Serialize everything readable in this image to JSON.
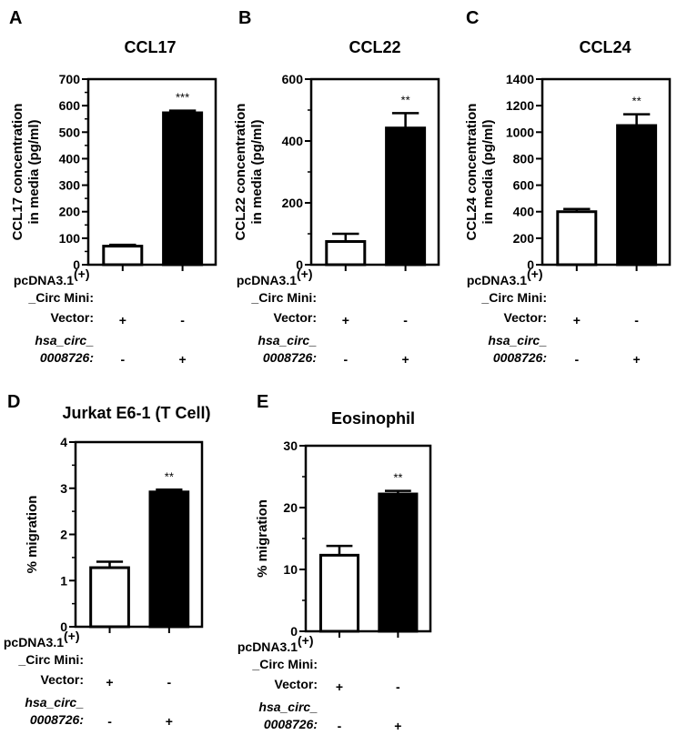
{
  "chart_data": [
    {
      "type": "bar",
      "panel": "A",
      "title": "CCL17",
      "ylabel_lines": [
        "CCL17 concentration",
        "in media (pg/ml)"
      ],
      "ylim": [
        0,
        700
      ],
      "yticks": [
        0,
        100,
        200,
        300,
        400,
        500,
        600,
        700
      ],
      "minor_step": 50,
      "categories": [
        "Vector",
        "hsa_circ_0008726"
      ],
      "values": [
        70,
        573
      ],
      "errors": [
        5,
        8
      ],
      "colors": [
        "#ffffff",
        "#000000"
      ],
      "significance": [
        "",
        "***"
      ],
      "rows": {
        "header": [
          "pcDNA3.1",
          "(+)",
          "_Circ Mini:"
        ],
        "vector_label": "Vector:",
        "circ_label": [
          "hsa_circ_",
          "0008726:"
        ],
        "vector_marks": [
          "+",
          "-"
        ],
        "circ_marks": [
          "-",
          "+"
        ]
      }
    },
    {
      "type": "bar",
      "panel": "B",
      "title": "CCL22",
      "ylabel_lines": [
        "CCL22 concentration",
        "in media (pg/ml)"
      ],
      "ylim": [
        0,
        600
      ],
      "yticks": [
        0,
        200,
        400,
        600
      ],
      "minor_step": 100,
      "categories": [
        "Vector",
        "hsa_circ_0008726"
      ],
      "values": [
        75,
        442
      ],
      "errors": [
        25,
        48
      ],
      "colors": [
        "#ffffff",
        "#000000"
      ],
      "significance": [
        "",
        "**"
      ],
      "rows": {
        "header": [
          "pcDNA3.1",
          "(+)",
          "_Circ Mini:"
        ],
        "vector_label": "Vector:",
        "circ_label": [
          "hsa_circ_",
          "0008726:"
        ],
        "vector_marks": [
          "+",
          "-"
        ],
        "circ_marks": [
          "-",
          "+"
        ]
      }
    },
    {
      "type": "bar",
      "panel": "C",
      "title": "CCL24",
      "ylabel_lines": [
        "CCL24 concentration",
        "in media (pg/ml)"
      ],
      "ylim": [
        0,
        1400
      ],
      "yticks": [
        0,
        200,
        400,
        600,
        800,
        1000,
        1200,
        1400
      ],
      "minor_step": 200,
      "categories": [
        "Vector",
        "hsa_circ_0008726"
      ],
      "values": [
        400,
        1050
      ],
      "errors": [
        20,
        85
      ],
      "colors": [
        "#ffffff",
        "#000000"
      ],
      "significance": [
        "",
        "**"
      ],
      "rows": {
        "header": [
          "pcDNA3.1",
          "(+)",
          "_Circ Mini:"
        ],
        "vector_label": "Vector:",
        "circ_label": [
          "hsa_circ_",
          "0008726:"
        ],
        "vector_marks": [
          "+",
          "-"
        ],
        "circ_marks": [
          "-",
          "+"
        ]
      }
    },
    {
      "type": "bar",
      "panel": "D",
      "title": "Jurkat E6-1 (T Cell)",
      "ylabel_lines": [
        "% migration"
      ],
      "ylim": [
        0,
        4
      ],
      "yticks": [
        0,
        1,
        2,
        3,
        4
      ],
      "minor_step": 0.5,
      "categories": [
        "Vector",
        "hsa_circ_0008726"
      ],
      "values": [
        1.28,
        2.92
      ],
      "errors": [
        0.13,
        0.05
      ],
      "colors": [
        "#ffffff",
        "#000000"
      ],
      "significance": [
        "",
        "**"
      ],
      "rows": {
        "header": [
          "pcDNA3.1",
          "(+)",
          "_Circ Mini:"
        ],
        "vector_label": "Vector:",
        "circ_label": [
          "hsa_circ_",
          "0008726:"
        ],
        "vector_marks": [
          "+",
          "-"
        ],
        "circ_marks": [
          "-",
          "+"
        ]
      }
    },
    {
      "type": "bar",
      "panel": "E",
      "title": "Eosinophil",
      "ylabel_lines": [
        "% migration"
      ],
      "ylim": [
        0,
        30
      ],
      "yticks": [
        0,
        10,
        20,
        30
      ],
      "minor_step": 5,
      "categories": [
        "Vector",
        "hsa_circ_0008726"
      ],
      "values": [
        12.3,
        22.2
      ],
      "errors": [
        1.5,
        0.5
      ],
      "colors": [
        "#ffffff",
        "#000000"
      ],
      "significance": [
        "",
        "**"
      ],
      "rows": {
        "header": [
          "pcDNA3.1",
          "(+)",
          "_Circ Mini:"
        ],
        "vector_label": "Vector:",
        "circ_label": [
          "hsa_circ_",
          "0008726:"
        ],
        "vector_marks": [
          "+",
          "-"
        ],
        "circ_marks": [
          "-",
          "+"
        ]
      }
    }
  ]
}
